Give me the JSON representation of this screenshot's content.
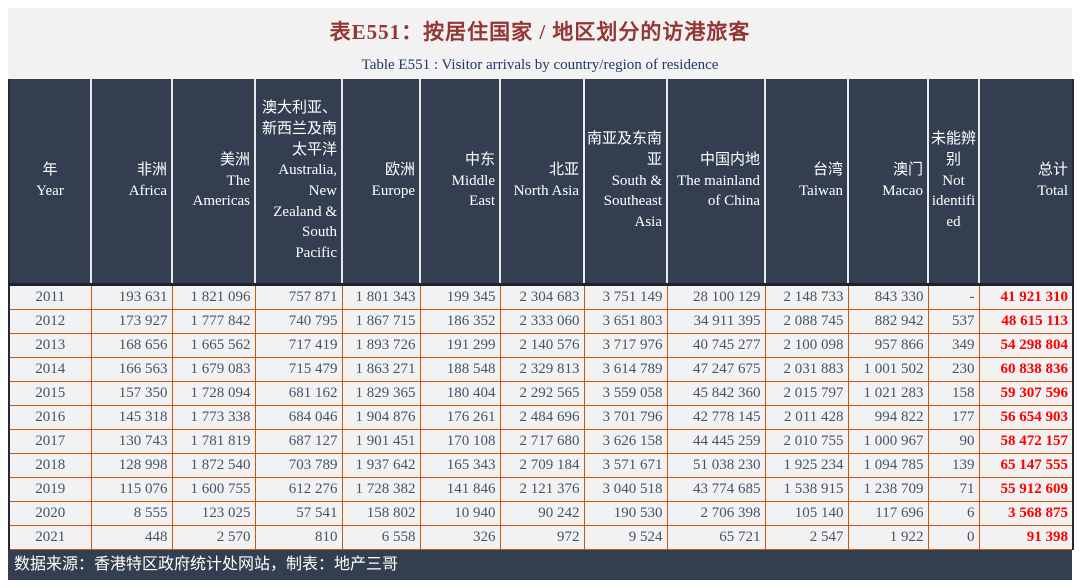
{
  "title": "表E551：按居住国家 / 地区划分的访港旅客",
  "subtitle": "Table E551 : Visitor arrivals by country/region of residence",
  "footer": "数据来源：香港特区政府统计处网站，制表：地产三哥",
  "colors": {
    "title_red": "#943634",
    "subtitle_navy": "#1F3864",
    "header_bg": "#333F50",
    "grid_orange": "#C55A11",
    "cell_bg": "#F2F2F2",
    "cell_text": "#44546A",
    "total_red": "#FF0000",
    "footer_bg": "#333F50"
  },
  "columns": [
    {
      "key": "year",
      "zh": "年",
      "en": "Year"
    },
    {
      "key": "africa",
      "zh": "非洲",
      "en": "Africa"
    },
    {
      "key": "americas",
      "zh": "美洲",
      "en": "The Americas"
    },
    {
      "key": "australia-nz-south-pacific",
      "zh": "澳大利亚、新西兰及南太平洋",
      "en": "Australia, New Zealand & South Pacific"
    },
    {
      "key": "europe",
      "zh": "欧洲",
      "en": "Europe"
    },
    {
      "key": "middle-east",
      "zh": "中东",
      "en": "Middle East"
    },
    {
      "key": "north-asia",
      "zh": "北亚",
      "en": "North Asia"
    },
    {
      "key": "south-southeast-asia",
      "zh": "南亚及东南亚",
      "en": "South & Southeast Asia"
    },
    {
      "key": "mainland-china",
      "zh": "中国内地",
      "en": "The mainland of China"
    },
    {
      "key": "taiwan",
      "zh": "台湾",
      "en": "Taiwan"
    },
    {
      "key": "macao",
      "zh": "澳门",
      "en": "Macao"
    },
    {
      "key": "not-identified",
      "zh": "未能辨别",
      "en": "Not identified"
    },
    {
      "key": "total",
      "zh": "总计",
      "en": "Total"
    }
  ],
  "rows": [
    [
      "2011",
      "193 631",
      "1 821 096",
      "757 871",
      "1 801 343",
      "199 345",
      "2 304 683",
      "3 751 149",
      "28 100 129",
      "2 148 733",
      "843 330",
      "-",
      "41 921 310"
    ],
    [
      "2012",
      "173 927",
      "1 777 842",
      "740 795",
      "1 867 715",
      "186 352",
      "2 333 060",
      "3 651 803",
      "34 911 395",
      "2 088 745",
      "882 942",
      "537",
      "48 615 113"
    ],
    [
      "2013",
      "168 656",
      "1 665 562",
      "717 419",
      "1 893 726",
      "191 299",
      "2 140 576",
      "3 717 976",
      "40 745 277",
      "2 100 098",
      "957 866",
      "349",
      "54 298 804"
    ],
    [
      "2014",
      "166 563",
      "1 679 083",
      "715 479",
      "1 863 271",
      "188 548",
      "2 329 813",
      "3 614 789",
      "47 247 675",
      "2 031 883",
      "1 001 502",
      "230",
      "60 838 836"
    ],
    [
      "2015",
      "157 350",
      "1 728 094",
      "681 162",
      "1 829 365",
      "180 404",
      "2 292 565",
      "3 559 058",
      "45 842 360",
      "2 015 797",
      "1 021 283",
      "158",
      "59 307 596"
    ],
    [
      "2016",
      "145 318",
      "1 773 338",
      "684 046",
      "1 904 876",
      "176 261",
      "2 484 696",
      "3 701 796",
      "42 778 145",
      "2 011 428",
      "994 822",
      "177",
      "56 654 903"
    ],
    [
      "2017",
      "130 743",
      "1 781 819",
      "687 127",
      "1 901 451",
      "170 108",
      "2 717 680",
      "3 626 158",
      "44 445 259",
      "2 010 755",
      "1 000 967",
      "90",
      "58 472 157"
    ],
    [
      "2018",
      "128 998",
      "1 872 540",
      "703 789",
      "1 937 642",
      "165 343",
      "2 709 184",
      "3 571 671",
      "51 038 230",
      "1 925 234",
      "1 094 785",
      "139",
      "65 147 555"
    ],
    [
      "2019",
      "115 076",
      "1 600 755",
      "612 276",
      "1 728 382",
      "141 846",
      "2 121 376",
      "3 040 518",
      "43 774 685",
      "1 538 915",
      "1 238 709",
      "71",
      "55 912 609"
    ],
    [
      "2020",
      "8 555",
      "123 025",
      "57 541",
      "158 802",
      "10 940",
      "90 242",
      "190 530",
      "2 706 398",
      "105 140",
      "117 696",
      "6",
      "3 568 875"
    ],
    [
      "2021",
      "448",
      "2 570",
      "810",
      "6 558",
      "326",
      "972",
      "9 524",
      "65 721",
      "2 547",
      "1 922",
      "0",
      "91 398"
    ]
  ]
}
